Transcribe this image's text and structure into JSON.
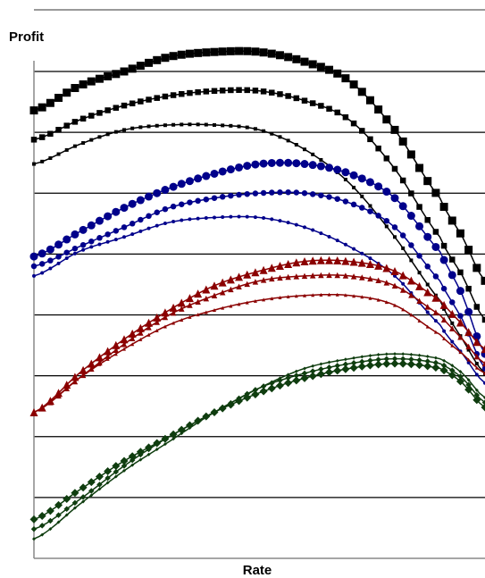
{
  "chart_data": {
    "type": "line",
    "title": "",
    "xlabel": "Rate",
    "ylabel": "Profit",
    "xlim": [
      0,
      100
    ],
    "ylim": [
      0,
      100
    ],
    "grid": "horizontal",
    "legend": "none",
    "series": [
      {
        "group": "black",
        "color": "#000000",
        "marker": "square",
        "x": [
          0,
          10,
          20,
          30,
          40,
          50,
          60,
          70,
          80,
          90,
          95,
          100
        ],
        "y": [
          92,
          97,
          100,
          103,
          104,
          104,
          102,
          98,
          88,
          74,
          66,
          57
        ]
      },
      {
        "group": "black",
        "color": "#000000",
        "marker": "square",
        "x": [
          0,
          10,
          20,
          30,
          40,
          50,
          60,
          70,
          80,
          90,
          95,
          100
        ],
        "y": [
          86,
          90,
          93,
          95,
          96,
          96,
          94,
          90,
          80,
          66,
          58,
          49
        ]
      },
      {
        "group": "black",
        "color": "#000000",
        "marker": "square",
        "x": [
          0,
          10,
          20,
          30,
          40,
          50,
          60,
          70,
          80,
          90,
          95,
          100
        ],
        "y": [
          81,
          85,
          88,
          89,
          89,
          88,
          84,
          77,
          66,
          53,
          45,
          38
        ]
      },
      {
        "group": "blue",
        "color": "#00008b",
        "marker": "circle",
        "x": [
          0,
          10,
          20,
          30,
          40,
          50,
          60,
          70,
          80,
          90,
          95,
          100
        ],
        "y": [
          62,
          67,
          72,
          76,
          79,
          81,
          81,
          79,
          74,
          63,
          54,
          42
        ]
      },
      {
        "group": "blue",
        "color": "#00008b",
        "marker": "circle",
        "x": [
          0,
          10,
          20,
          30,
          40,
          50,
          60,
          70,
          80,
          90,
          95,
          100
        ],
        "y": [
          60,
          64,
          68,
          72,
          74,
          75,
          75,
          73,
          68,
          57,
          49,
          39
        ]
      },
      {
        "group": "blue",
        "color": "#00008b",
        "marker": "circle",
        "x": [
          0,
          10,
          20,
          30,
          40,
          50,
          60,
          70,
          80,
          90,
          95,
          100
        ],
        "y": [
          58,
          63,
          66,
          69,
          70,
          70,
          68,
          64,
          58,
          48,
          42,
          36
        ]
      },
      {
        "group": "red",
        "color": "#8b0000",
        "marker": "triangle",
        "x": [
          0,
          10,
          20,
          30,
          40,
          50,
          60,
          70,
          80,
          90,
          95,
          100
        ],
        "y": [
          30,
          38,
          45,
          51,
          56,
          59,
          61,
          61,
          59,
          53,
          48,
          43
        ]
      },
      {
        "group": "red",
        "color": "#8b0000",
        "marker": "triangle",
        "x": [
          0,
          10,
          20,
          30,
          40,
          50,
          60,
          70,
          80,
          90,
          95,
          100
        ],
        "y": [
          30,
          37,
          44,
          50,
          54,
          57,
          58,
          58,
          56,
          50,
          45,
          40
        ]
      },
      {
        "group": "red",
        "color": "#8b0000",
        "marker": "triangle",
        "x": [
          0,
          10,
          20,
          30,
          40,
          50,
          60,
          70,
          80,
          90,
          95,
          100
        ],
        "y": [
          30,
          37,
          43,
          48,
          51,
          53,
          54,
          54,
          52,
          46,
          42,
          38
        ]
      },
      {
        "group": "green",
        "color": "#0f3d0f",
        "marker": "diamond",
        "x": [
          0,
          10,
          20,
          30,
          40,
          50,
          60,
          70,
          80,
          90,
          95,
          100
        ],
        "y": [
          8,
          14,
          20,
          25,
          30,
          34,
          37,
          39,
          40,
          39,
          36,
          31
        ]
      },
      {
        "group": "green",
        "color": "#0f3d0f",
        "marker": "diamond",
        "x": [
          0,
          10,
          20,
          30,
          40,
          50,
          60,
          70,
          80,
          90,
          95,
          100
        ],
        "y": [
          6,
          12,
          19,
          25,
          30,
          35,
          38,
          40,
          41,
          40,
          37,
          32
        ]
      },
      {
        "group": "green",
        "color": "#0f3d0f",
        "marker": "diamond",
        "x": [
          0,
          10,
          20,
          30,
          40,
          50,
          60,
          70,
          80,
          90,
          95,
          100
        ],
        "y": [
          4,
          11,
          18,
          24,
          30,
          35,
          39,
          41,
          42,
          41,
          38,
          33
        ]
      }
    ]
  }
}
